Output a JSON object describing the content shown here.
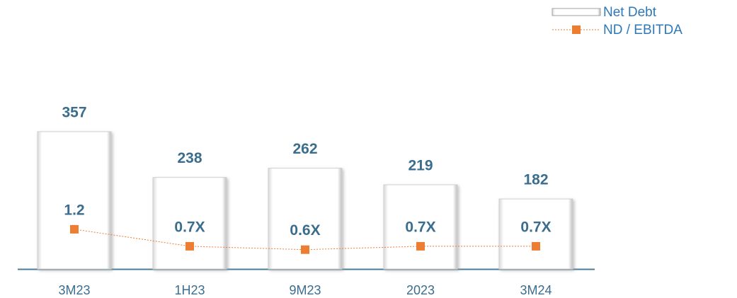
{
  "chart_data": {
    "type": "bar",
    "categories": [
      "3M23",
      "1H23",
      "9M23",
      "2023",
      "3M24"
    ],
    "series": [
      {
        "name": "Net Debt",
        "color": "#ffffff",
        "values": [
          357,
          238,
          262,
          219,
          182
        ]
      },
      {
        "name": "ND / EBITDA",
        "color": "#ed7d31",
        "type": "line",
        "values": [
          1.2,
          0.7,
          0.6,
          0.7,
          0.7
        ],
        "value_labels": [
          "1.2",
          "0.7X",
          "0.6X",
          "0.7X",
          "0.7X"
        ]
      }
    ],
    "legend": "top-right"
  }
}
